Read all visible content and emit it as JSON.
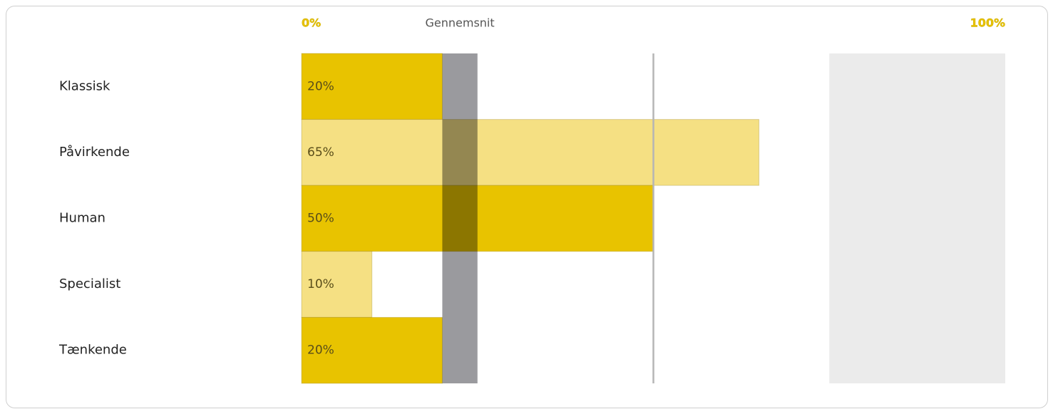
{
  "chart_data": {
    "type": "bar",
    "orientation": "horizontal",
    "categories": [
      "Klassisk",
      "Påvirkende",
      "Human",
      "Specialist",
      "Tænkende"
    ],
    "values": [
      20,
      65,
      50,
      10,
      20
    ],
    "value_labels": [
      "20%",
      "65%",
      "50%",
      "10%",
      "20%"
    ],
    "colors": [
      "#e8c300",
      "#f5e083",
      "#e8c300",
      "#f5e083",
      "#e8c300"
    ],
    "xlim": [
      0,
      100
    ],
    "xticks": [
      {
        "value": 0,
        "label": "0%"
      },
      {
        "value": 100,
        "label": "100%"
      }
    ],
    "average": {
      "label": "Gennemsnit",
      "range": [
        20,
        25
      ],
      "color": "#9a9a9e"
    },
    "reference_line": 50,
    "shaded_range": [
      75,
      100
    ]
  }
}
